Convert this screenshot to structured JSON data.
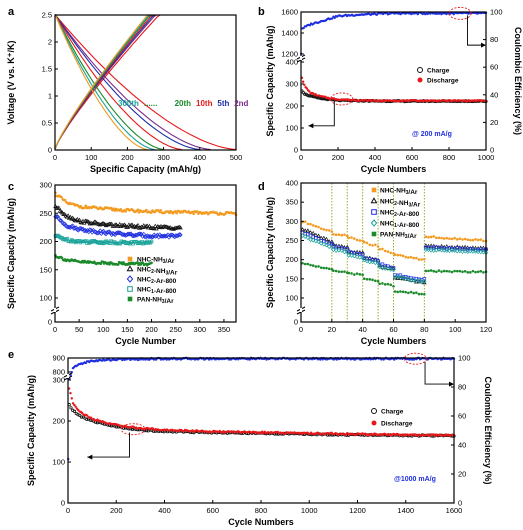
{
  "colors": {
    "orange": "#f39a21",
    "black": "#111111",
    "blue": "#1f2fe0",
    "teal": "#1aa39a",
    "green": "#1a8a2a",
    "red": "#e8181a",
    "purple": "#7a2a8a",
    "navy": "#1c2fa8",
    "ink": "#000000"
  },
  "chart_data": [
    {
      "panel": "a",
      "type": "line",
      "xlabel": "Specific Capacity (mAh/g)",
      "ylabel": "Voltage (V vs. K⁺/K)",
      "xlim": [
        0,
        500
      ],
      "ylim": [
        0,
        2.5
      ],
      "xticks": [
        0,
        50,
        100,
        150,
        200,
        250,
        300,
        350,
        400,
        450,
        500
      ],
      "yticks": [
        0,
        0.5,
        1.0,
        1.5,
        2.0,
        2.5
      ],
      "cycle_labels": [
        {
          "text": "300th",
          "color": "#1aa39a"
        },
        {
          "text": "......",
          "color": "#1a8a2a"
        },
        {
          "text": "20th",
          "color": "#1a8a2a"
        },
        {
          "text": "10th",
          "color": "#e8181a"
        },
        {
          "text": "5th",
          "color": "#1c2fa8"
        },
        {
          "text": "2nd",
          "color": "#7a2a8a"
        }
      ],
      "discharge_end_capacity": [
        500,
        430,
        400,
        350,
        300,
        275,
        255
      ],
      "charge_end_capacity": [
        290,
        280,
        275,
        270,
        265,
        262,
        258
      ],
      "curve_colors": [
        "#e8181a",
        "#7a2a8a",
        "#1c2fa8",
        "#e8181a",
        "#1a8a2a",
        "#1aa39a",
        "#f39a21"
      ]
    },
    {
      "panel": "b",
      "type": "scatter",
      "xlabel": "Cycle Numbers",
      "ylabel": "Specific Capacity (mAh/g)",
      "y2label": "Coulombic Efficiency (%)",
      "xlim": [
        0,
        1000
      ],
      "ylim": [
        0,
        1600
      ],
      "ybreak": [
        400,
        1200
      ],
      "y2lim": [
        0,
        100
      ],
      "xticks": [
        0,
        200,
        400,
        600,
        800,
        1000
      ],
      "yticks_lower": [
        0,
        100,
        200,
        300,
        400
      ],
      "yticks_upper": [
        1200,
        1400,
        1600
      ],
      "y2ticks": [
        0,
        20,
        40,
        60,
        80,
        100
      ],
      "annotation": "@ 200 mA/g",
      "legend": [
        "Charge",
        "Discharge"
      ],
      "series": [
        {
          "name": "Charge",
          "color": "#111111",
          "x": [
            5,
            20,
            50,
            100,
            150,
            200,
            300,
            400,
            500,
            600,
            700,
            800,
            900,
            1000
          ],
          "values": [
            270,
            255,
            245,
            235,
            230,
            226,
            224,
            223,
            222,
            222,
            222,
            222,
            222,
            222
          ]
        },
        {
          "name": "Discharge",
          "color": "#e8181a",
          "x": [
            5,
            20,
            50,
            100,
            150,
            200,
            300,
            400,
            500,
            600,
            700,
            800,
            900,
            1000
          ],
          "values": [
            330,
            290,
            260,
            245,
            236,
            230,
            226,
            224,
            224,
            224,
            224,
            224,
            224,
            224
          ]
        },
        {
          "name": "CE",
          "color": "#1f2fe0",
          "x": [
            1,
            5,
            20,
            50,
            100,
            150,
            200,
            300,
            400,
            500,
            600,
            700,
            800,
            900,
            1000
          ],
          "values": [
            70,
            88,
            89,
            91,
            93,
            95,
            97,
            98,
            98.5,
            99,
            99,
            99,
            99,
            99,
            99
          ]
        }
      ]
    },
    {
      "panel": "c",
      "type": "scatter",
      "xlabel": "Cycle Number",
      "ylabel": "Specific Capacity (mAh/g)",
      "xlim": [
        0,
        375
      ],
      "ylim": [
        0,
        300
      ],
      "ybreak": [
        0,
        100
      ],
      "xticks": [
        0,
        50,
        100,
        150,
        200,
        250,
        300,
        350
      ],
      "yticks": [
        0,
        100,
        150,
        200,
        250,
        300
      ],
      "legend": [
        "NHC-NH3/Ar",
        "NHC2-NH3/Ar",
        "NHC2-Ar-800",
        "NHC1-Ar-800",
        "PAN-NH3/Ar"
      ],
      "series": [
        {
          "name": "NHC-NH3/Ar",
          "color": "#f39a21",
          "x": [
            1,
            25,
            50,
            100,
            150,
            200,
            250,
            300,
            350,
            375
          ],
          "values": [
            285,
            268,
            262,
            258,
            255,
            253,
            252,
            251,
            250,
            249
          ]
        },
        {
          "name": "NHC2-NH3/Ar",
          "color": "#111111",
          "x": [
            1,
            25,
            50,
            100,
            150,
            200,
            260
          ],
          "values": [
            262,
            245,
            236,
            230,
            227,
            225,
            224
          ]
        },
        {
          "name": "NHC2-Ar-800",
          "color": "#1f2fe0",
          "x": [
            1,
            25,
            50,
            100,
            150,
            200,
            260
          ],
          "values": [
            245,
            228,
            222,
            216,
            212,
            210,
            210
          ]
        },
        {
          "name": "NHC1-Ar-800",
          "color": "#1aa39a",
          "x": [
            1,
            25,
            50,
            100,
            150,
            200
          ],
          "values": [
            210,
            203,
            200,
            199,
            198,
            198
          ]
        },
        {
          "name": "PAN-NH3/Ar",
          "color": "#1a8a2a",
          "x": [
            1,
            25,
            50,
            100,
            150,
            200
          ],
          "values": [
            175,
            167,
            164,
            162,
            161,
            160
          ]
        }
      ]
    },
    {
      "panel": "d",
      "type": "scatter",
      "xlabel": "Cycle Numbers",
      "ylabel": "Specific Capacity (mAh/g)",
      "xlim": [
        0,
        120
      ],
      "ylim": [
        0,
        400
      ],
      "ybreak": [
        0,
        100
      ],
      "xticks": [
        0,
        20,
        40,
        60,
        80,
        100,
        120
      ],
      "yticks": [
        0,
        100,
        150,
        200,
        250,
        300,
        350,
        400
      ],
      "step_cycles": [
        20,
        30,
        40,
        50,
        60,
        80
      ],
      "legend": [
        "NHC-NH3/Ar",
        "NHC2-NH3/Ar",
        "NHC2-Ar-800",
        "NHC1-Ar-800",
        "PAN-NH3/Ar"
      ],
      "series": [
        {
          "name": "NHC-NH3/Ar",
          "color": "#f39a21",
          "x": [
            1,
            20,
            21,
            30,
            31,
            40,
            41,
            50,
            51,
            60,
            61,
            80,
            81,
            120
          ],
          "values": [
            300,
            272,
            268,
            262,
            258,
            250,
            244,
            236,
            228,
            218,
            212,
            200,
            260,
            250
          ]
        },
        {
          "name": "NHC2-NH3/Ar",
          "color": "#111111",
          "x": [
            1,
            20,
            21,
            30,
            31,
            40,
            41,
            50,
            51,
            60,
            61,
            80,
            81,
            120
          ],
          "values": [
            280,
            245,
            238,
            232,
            222,
            216,
            205,
            198,
            184,
            176,
            152,
            140,
            235,
            228
          ]
        },
        {
          "name": "NHC2-Ar-800",
          "color": "#1f2fe0",
          "x": [
            1,
            20,
            21,
            30,
            31,
            40,
            41,
            50,
            51,
            60,
            61,
            80,
            81,
            120
          ],
          "values": [
            270,
            240,
            234,
            228,
            220,
            214,
            205,
            198,
            188,
            180,
            160,
            148,
            232,
            225
          ]
        },
        {
          "name": "NHC1-Ar-800",
          "color": "#1aa39a",
          "x": [
            1,
            20,
            21,
            30,
            31,
            40,
            41,
            50,
            51,
            60,
            61,
            80,
            81,
            120
          ],
          "values": [
            262,
            232,
            226,
            220,
            212,
            206,
            198,
            190,
            180,
            172,
            155,
            142,
            226,
            220
          ]
        },
        {
          "name": "PAN-NH3/Ar",
          "color": "#1a8a2a",
          "x": [
            1,
            20,
            21,
            30,
            31,
            40,
            41,
            50,
            51,
            60,
            61,
            80,
            81,
            120
          ],
          "values": [
            190,
            175,
            172,
            168,
            164,
            160,
            150,
            145,
            138,
            132,
            118,
            110,
            170,
            168
          ]
        }
      ]
    },
    {
      "panel": "e",
      "type": "scatter",
      "xlabel": "Cycle Numbers",
      "ylabel": "Specific Capacity (mAh/g)",
      "y2label": "Coulombic Efficiency (%)",
      "xlim": [
        0,
        1600
      ],
      "ylim": [
        0,
        900
      ],
      "ybreak": [
        300,
        800
      ],
      "y2lim": [
        0,
        100
      ],
      "xticks": [
        0,
        200,
        400,
        600,
        800,
        1000,
        1200,
        1400,
        1600
      ],
      "yticks_lower": [
        0,
        100,
        200,
        300
      ],
      "yticks_upper": [
        800,
        900
      ],
      "y2ticks": [
        0,
        20,
        40,
        60,
        80,
        100
      ],
      "annotation": "@1000 mA/g",
      "legend": [
        "Charge",
        "Discharge"
      ],
      "series": [
        {
          "name": "Charge",
          "color": "#111111",
          "x": [
            5,
            20,
            50,
            100,
            200,
            300,
            400,
            600,
            800,
            1000,
            1200,
            1400,
            1600
          ],
          "values": [
            240,
            225,
            212,
            200,
            186,
            178,
            175,
            172,
            170,
            168,
            166,
            165,
            164
          ]
        },
        {
          "name": "Discharge",
          "color": "#e8181a",
          "x": [
            5,
            20,
            50,
            100,
            200,
            300,
            400,
            600,
            800,
            1000,
            1200,
            1400,
            1600
          ],
          "values": [
            280,
            245,
            222,
            205,
            190,
            182,
            178,
            174,
            172,
            170,
            168,
            166,
            165
          ]
        },
        {
          "name": "CE",
          "color": "#1f2fe0",
          "x": [
            1,
            5,
            20,
            50,
            100,
            200,
            400,
            800,
            1200,
            1600
          ],
          "values": [
            30,
            85,
            93,
            96,
            98,
            99,
            99.5,
            99.5,
            99.5,
            99.5
          ]
        }
      ]
    }
  ]
}
